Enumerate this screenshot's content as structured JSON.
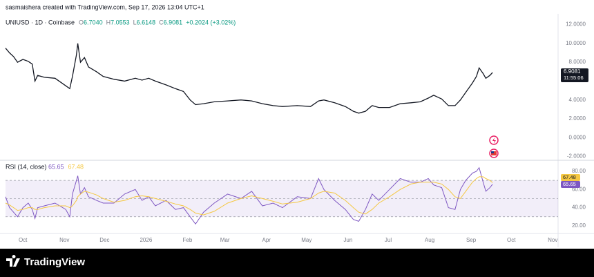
{
  "header": {
    "attribution": "sasmaishera created with TradingView.com, Sep 17, 2026 13:04 UTC+1",
    "symbol": "UNIUSD · 1D · Coinbase",
    "ohlc": [
      {
        "name": "O",
        "value": "6.7040"
      },
      {
        "name": "H",
        "value": "7.0553"
      },
      {
        "name": "L",
        "value": "6.6148"
      },
      {
        "name": "C",
        "value": "6.9081"
      }
    ],
    "change": "+0.2024 (+3.02%)"
  },
  "footer": {
    "brand": "TradingView"
  },
  "chart_data": [
    {
      "type": "line",
      "xlim": [
        -13,
        400
      ],
      "ylim": [
        -2.4,
        12.7
      ],
      "yticks": [
        {
          "value": 12,
          "label": "12.0000"
        },
        {
          "value": 10,
          "label": "10.0000"
        },
        {
          "value": 8,
          "label": "8.0000"
        },
        {
          "value": 4,
          "label": "4.0000"
        },
        {
          "value": 2,
          "label": "2.0000"
        },
        {
          "value": 0,
          "label": "0.0000"
        },
        {
          "value": -2,
          "label": "-2.0000"
        }
      ],
      "x": [
        -13,
        -10,
        -7,
        -4,
        0,
        4,
        7,
        9,
        11,
        16,
        24,
        32,
        35,
        37,
        40,
        41,
        43,
        46,
        49,
        55,
        60,
        68,
        76,
        84,
        89,
        94,
        99,
        107,
        114,
        120,
        125,
        129,
        135,
        143,
        153,
        163,
        171,
        179,
        187,
        194,
        205,
        215,
        221,
        225,
        233,
        241,
        247,
        251,
        256,
        261,
        266,
        274,
        282,
        290,
        297,
        303,
        307,
        313,
        318,
        323,
        327,
        331,
        336,
        339,
        341,
        344,
        346,
        349,
        351
      ],
      "series": [
        {
          "name": "UNIUSD",
          "color": "#131722",
          "values": [
            9.5,
            9.0,
            8.6,
            8.0,
            8.3,
            8.1,
            7.8,
            6.0,
            6.6,
            6.4,
            6.3,
            5.5,
            5.2,
            6.5,
            8.8,
            10.0,
            8.0,
            8.5,
            7.5,
            7.0,
            6.5,
            6.2,
            6.0,
            6.3,
            6.1,
            6.3,
            6.0,
            5.6,
            5.2,
            4.9,
            4.0,
            3.5,
            3.6,
            3.8,
            3.9,
            4.0,
            3.9,
            3.6,
            3.4,
            3.3,
            3.4,
            3.3,
            3.9,
            4.0,
            3.7,
            3.3,
            2.8,
            2.6,
            2.8,
            3.4,
            3.2,
            3.2,
            3.6,
            3.7,
            3.8,
            4.2,
            4.5,
            4.1,
            3.4,
            3.4,
            4.0,
            4.8,
            5.8,
            6.5,
            7.4,
            6.8,
            6.3,
            6.6,
            6.9081
          ]
        }
      ],
      "last_price": 6.9081,
      "countdown": "11:55:06"
    },
    {
      "type": "line",
      "title": "RSI (14, close)",
      "xlim": [
        -13,
        400
      ],
      "ylim": [
        11.6,
        90.6
      ],
      "yticks": [
        {
          "value": 80,
          "label": "80.00"
        },
        {
          "value": 60,
          "label": "60.00"
        },
        {
          "value": 40,
          "label": "40.00"
        },
        {
          "value": 20,
          "label": "20.00"
        }
      ],
      "levels": [
        30,
        50,
        70
      ],
      "xticks": [
        {
          "value": 0,
          "label": "Oct"
        },
        {
          "value": 31,
          "label": "Nov"
        },
        {
          "value": 61,
          "label": "Dec"
        },
        {
          "value": 92,
          "label": "2026"
        },
        {
          "value": 123,
          "label": "Feb"
        },
        {
          "value": 151,
          "label": "Mar"
        },
        {
          "value": 182,
          "label": "Apr"
        },
        {
          "value": 212,
          "label": "May"
        },
        {
          "value": 243,
          "label": "Jun"
        },
        {
          "value": 273,
          "label": "Jul"
        },
        {
          "value": 304,
          "label": "Aug"
        },
        {
          "value": 335,
          "label": "Sep"
        },
        {
          "value": 365,
          "label": "Oct"
        },
        {
          "value": 396,
          "label": "Nov"
        }
      ],
      "x": [
        -13,
        -10,
        -7,
        -4,
        0,
        4,
        7,
        9,
        11,
        16,
        24,
        32,
        35,
        37,
        40,
        41,
        43,
        46,
        49,
        55,
        60,
        68,
        76,
        84,
        89,
        94,
        99,
        107,
        114,
        120,
        125,
        129,
        135,
        143,
        153,
        163,
        171,
        179,
        187,
        194,
        205,
        215,
        221,
        225,
        233,
        241,
        247,
        251,
        256,
        261,
        266,
        274,
        282,
        290,
        297,
        303,
        307,
        313,
        318,
        323,
        327,
        331,
        336,
        339,
        341,
        344,
        346,
        349,
        351
      ],
      "series": [
        {
          "name": "RSI",
          "color": "#7e57c2",
          "values": [
            52,
            40,
            35,
            30,
            40,
            45,
            38,
            28,
            40,
            42,
            45,
            38,
            30,
            55,
            70,
            75,
            55,
            62,
            52,
            48,
            45,
            45,
            55,
            60,
            48,
            52,
            42,
            48,
            38,
            40,
            30,
            22,
            35,
            45,
            55,
            50,
            58,
            42,
            45,
            40,
            52,
            50,
            72,
            60,
            48,
            38,
            27,
            25,
            38,
            55,
            48,
            60,
            72,
            68,
            68,
            72,
            65,
            62,
            40,
            38,
            60,
            70,
            78,
            80,
            84,
            68,
            58,
            62,
            65.65
          ]
        },
        {
          "name": "RSI MA",
          "color": "#f5c842",
          "values": [
            45,
            43,
            40,
            37,
            38,
            40,
            40,
            38,
            38,
            40,
            42,
            42,
            40,
            42,
            48,
            52,
            55,
            58,
            57,
            54,
            50,
            46,
            48,
            52,
            53,
            52,
            50,
            47,
            44,
            42,
            38,
            34,
            32,
            36,
            45,
            50,
            53,
            50,
            47,
            44,
            46,
            50,
            56,
            58,
            56,
            48,
            40,
            35,
            33,
            38,
            45,
            52,
            60,
            66,
            68,
            68,
            68,
            66,
            60,
            52,
            50,
            58,
            68,
            72,
            74,
            74,
            72,
            70,
            67.48
          ]
        }
      ]
    }
  ]
}
